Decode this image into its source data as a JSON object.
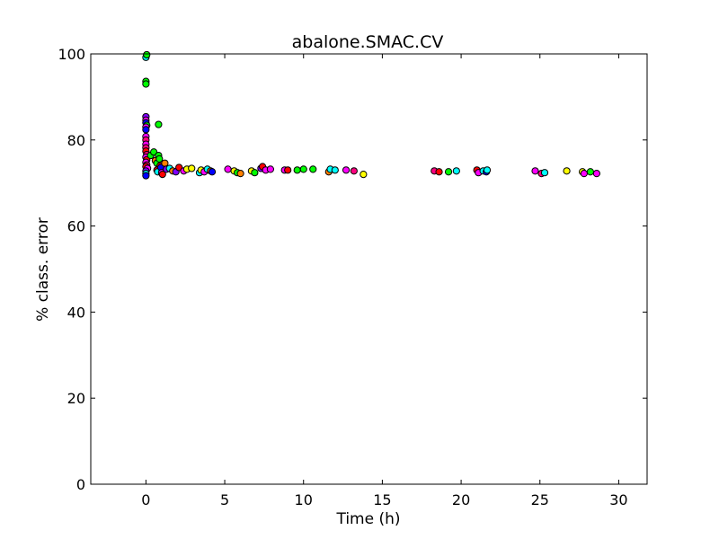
{
  "chart_data": {
    "type": "scatter",
    "title": "abalone.SMAC.CV",
    "xlabel": "Time (h)",
    "ylabel": "% class. error",
    "xlim": [
      -3.5,
      31.8
    ],
    "ylim": [
      0,
      100
    ],
    "xticks": [
      0,
      5,
      10,
      15,
      20,
      25,
      30
    ],
    "yticks": [
      0,
      20,
      40,
      60,
      80,
      100
    ],
    "grid": false,
    "legend": "none",
    "marker_colors": [
      "#ff0000",
      "#ff00ff",
      "#00ffff",
      "#00ff00",
      "#ffff00",
      "#0000ff",
      "#ff8000",
      "#8000ff",
      "#ff0080"
    ],
    "points": [
      {
        "x": 0.0,
        "y": 99.2,
        "color": "#00ffff"
      },
      {
        "x": 0.05,
        "y": 99.8,
        "color": "#00ff00"
      },
      {
        "x": 0.0,
        "y": 93.6,
        "color": "#00ff00"
      },
      {
        "x": 0.0,
        "y": 93.0,
        "color": "#00ff00"
      },
      {
        "x": 0.0,
        "y": 85.4,
        "color": "#8000ff"
      },
      {
        "x": 0.0,
        "y": 84.6,
        "color": "#ff00ff"
      },
      {
        "x": 0.0,
        "y": 84.0,
        "color": "#0000ff"
      },
      {
        "x": 0.05,
        "y": 83.4,
        "color": "#00ff00"
      },
      {
        "x": 0.0,
        "y": 83.0,
        "color": "#ff00ff"
      },
      {
        "x": 0.0,
        "y": 82.4,
        "color": "#0000ff"
      },
      {
        "x": 0.0,
        "y": 80.8,
        "color": "#ff00ff"
      },
      {
        "x": 0.0,
        "y": 80.0,
        "color": "#ff0080"
      },
      {
        "x": 0.0,
        "y": 79.0,
        "color": "#ff00ff"
      },
      {
        "x": 0.0,
        "y": 78.2,
        "color": "#ff0080"
      },
      {
        "x": 0.0,
        "y": 77.4,
        "color": "#ff0000"
      },
      {
        "x": 0.05,
        "y": 76.6,
        "color": "#ff0080"
      },
      {
        "x": 0.0,
        "y": 76.0,
        "color": "#ff00ff"
      },
      {
        "x": 0.05,
        "y": 75.4,
        "color": "#ff0000"
      },
      {
        "x": 0.0,
        "y": 74.8,
        "color": "#ff00ff"
      },
      {
        "x": 0.05,
        "y": 74.2,
        "color": "#ff0080"
      },
      {
        "x": 0.0,
        "y": 73.8,
        "color": "#ff0000"
      },
      {
        "x": 0.1,
        "y": 73.4,
        "color": "#ff00ff"
      },
      {
        "x": 0.0,
        "y": 72.8,
        "color": "#8000ff"
      },
      {
        "x": 0.0,
        "y": 72.2,
        "color": "#00ffff"
      },
      {
        "x": 0.0,
        "y": 71.7,
        "color": "#0000ff"
      },
      {
        "x": 0.3,
        "y": 76.4,
        "color": "#00ff00"
      },
      {
        "x": 0.5,
        "y": 77.2,
        "color": "#00ff00"
      },
      {
        "x": 0.6,
        "y": 75.2,
        "color": "#ff8000"
      },
      {
        "x": 0.7,
        "y": 74.6,
        "color": "#00ff00"
      },
      {
        "x": 0.8,
        "y": 83.6,
        "color": "#00ff00"
      },
      {
        "x": 0.8,
        "y": 76.4,
        "color": "#00ff00"
      },
      {
        "x": 0.85,
        "y": 75.6,
        "color": "#00ff00"
      },
      {
        "x": 0.9,
        "y": 74.0,
        "color": "#ff0000"
      },
      {
        "x": 0.7,
        "y": 73.0,
        "color": "#ff0000"
      },
      {
        "x": 0.75,
        "y": 72.6,
        "color": "#00ffff"
      },
      {
        "x": 0.95,
        "y": 73.6,
        "color": "#0000ff"
      },
      {
        "x": 1.0,
        "y": 72.4,
        "color": "#ff00ff"
      },
      {
        "x": 1.05,
        "y": 72.0,
        "color": "#ff0000"
      },
      {
        "x": 1.2,
        "y": 74.6,
        "color": "#ff8000"
      },
      {
        "x": 1.3,
        "y": 73.2,
        "color": "#8000ff"
      },
      {
        "x": 1.5,
        "y": 73.4,
        "color": "#00ffff"
      },
      {
        "x": 1.7,
        "y": 72.8,
        "color": "#ff8000"
      },
      {
        "x": 1.9,
        "y": 72.6,
        "color": "#8000ff"
      },
      {
        "x": 2.1,
        "y": 73.6,
        "color": "#ff0000"
      },
      {
        "x": 2.4,
        "y": 72.8,
        "color": "#ff00ff"
      },
      {
        "x": 2.6,
        "y": 73.2,
        "color": "#ffff00"
      },
      {
        "x": 2.9,
        "y": 73.4,
        "color": "#ffff00"
      },
      {
        "x": 3.4,
        "y": 72.4,
        "color": "#00ffff"
      },
      {
        "x": 3.5,
        "y": 73.0,
        "color": "#ffff00"
      },
      {
        "x": 3.7,
        "y": 72.6,
        "color": "#ff00ff"
      },
      {
        "x": 3.9,
        "y": 73.2,
        "color": "#00ffff"
      },
      {
        "x": 4.1,
        "y": 72.8,
        "color": "#ff8000"
      },
      {
        "x": 4.2,
        "y": 72.6,
        "color": "#0000ff"
      },
      {
        "x": 5.2,
        "y": 73.2,
        "color": "#ff00ff"
      },
      {
        "x": 5.6,
        "y": 72.8,
        "color": "#ffff00"
      },
      {
        "x": 5.8,
        "y": 72.4,
        "color": "#00ff00"
      },
      {
        "x": 6.0,
        "y": 72.2,
        "color": "#ff8000"
      },
      {
        "x": 6.7,
        "y": 72.8,
        "color": "#ffff00"
      },
      {
        "x": 6.9,
        "y": 72.4,
        "color": "#00ff00"
      },
      {
        "x": 7.3,
        "y": 73.4,
        "color": "#8000ff"
      },
      {
        "x": 7.4,
        "y": 73.8,
        "color": "#ff0000"
      },
      {
        "x": 7.6,
        "y": 73.0,
        "color": "#ff00ff"
      },
      {
        "x": 7.9,
        "y": 73.2,
        "color": "#ff00ff"
      },
      {
        "x": 8.8,
        "y": 73.0,
        "color": "#ff00ff"
      },
      {
        "x": 9.0,
        "y": 73.0,
        "color": "#ff0000"
      },
      {
        "x": 9.6,
        "y": 73.0,
        "color": "#00ff00"
      },
      {
        "x": 10.0,
        "y": 73.2,
        "color": "#00ff00"
      },
      {
        "x": 10.6,
        "y": 73.2,
        "color": "#00ff00"
      },
      {
        "x": 11.6,
        "y": 72.6,
        "color": "#ff8000"
      },
      {
        "x": 11.7,
        "y": 73.2,
        "color": "#00ffff"
      },
      {
        "x": 12.0,
        "y": 73.0,
        "color": "#00ffff"
      },
      {
        "x": 12.7,
        "y": 73.0,
        "color": "#ff00ff"
      },
      {
        "x": 13.2,
        "y": 72.8,
        "color": "#ff0080"
      },
      {
        "x": 13.8,
        "y": 72.0,
        "color": "#ffff00"
      },
      {
        "x": 18.3,
        "y": 72.8,
        "color": "#ff0080"
      },
      {
        "x": 18.6,
        "y": 72.6,
        "color": "#ff0000"
      },
      {
        "x": 19.2,
        "y": 72.6,
        "color": "#00ff00"
      },
      {
        "x": 19.7,
        "y": 72.8,
        "color": "#00ffff"
      },
      {
        "x": 21.0,
        "y": 73.0,
        "color": "#ff0000"
      },
      {
        "x": 21.1,
        "y": 72.4,
        "color": "#ff00ff"
      },
      {
        "x": 21.4,
        "y": 72.8,
        "color": "#00ffff"
      },
      {
        "x": 21.6,
        "y": 72.6,
        "color": "#0000ff"
      },
      {
        "x": 21.65,
        "y": 73.0,
        "color": "#00ffff"
      },
      {
        "x": 24.7,
        "y": 72.8,
        "color": "#ff00ff"
      },
      {
        "x": 25.1,
        "y": 72.2,
        "color": "#ff0080"
      },
      {
        "x": 25.3,
        "y": 72.4,
        "color": "#00ffff"
      },
      {
        "x": 26.7,
        "y": 72.8,
        "color": "#ffff00"
      },
      {
        "x": 27.7,
        "y": 72.6,
        "color": "#ffff00"
      },
      {
        "x": 27.8,
        "y": 72.2,
        "color": "#ff00ff"
      },
      {
        "x": 28.2,
        "y": 72.6,
        "color": "#00ff00"
      },
      {
        "x": 28.6,
        "y": 72.2,
        "color": "#ff00ff"
      }
    ]
  }
}
